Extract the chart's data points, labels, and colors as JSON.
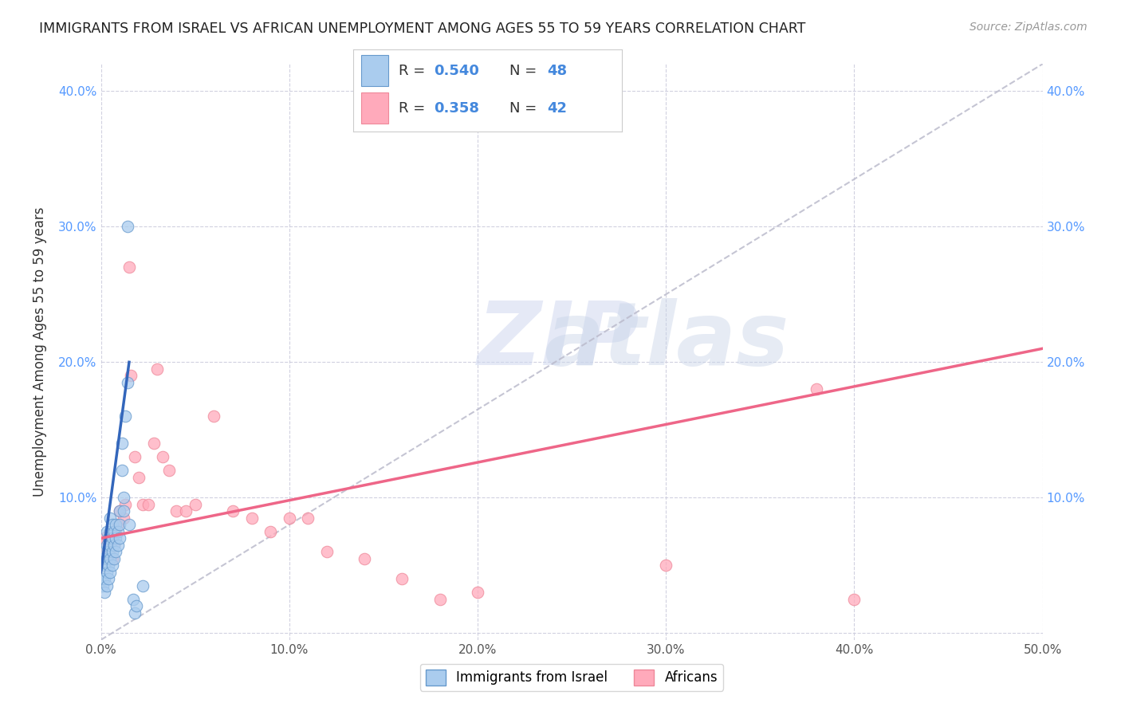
{
  "title": "IMMIGRANTS FROM ISRAEL VS AFRICAN UNEMPLOYMENT AMONG AGES 55 TO 59 YEARS CORRELATION CHART",
  "source": "Source: ZipAtlas.com",
  "ylabel": "Unemployment Among Ages 55 to 59 years",
  "xlim": [
    0.0,
    0.5
  ],
  "ylim": [
    -0.005,
    0.42
  ],
  "legend_label1": "Immigrants from Israel",
  "legend_label2": "Africans",
  "R1": 0.54,
  "N1": 48,
  "R2": 0.358,
  "N2": 42,
  "color_blue_fill": "#AACCEE",
  "color_blue_edge": "#6699CC",
  "color_pink_fill": "#FFAABB",
  "color_pink_edge": "#EE8899",
  "color_blue_line": "#3366BB",
  "color_pink_line": "#EE6688",
  "color_dash_line": "#BBBBCC",
  "blue_scatter_x": [
    0.001,
    0.001,
    0.001,
    0.002,
    0.002,
    0.002,
    0.002,
    0.003,
    0.003,
    0.003,
    0.003,
    0.003,
    0.004,
    0.004,
    0.004,
    0.004,
    0.005,
    0.005,
    0.005,
    0.005,
    0.005,
    0.006,
    0.006,
    0.006,
    0.006,
    0.007,
    0.007,
    0.007,
    0.008,
    0.008,
    0.008,
    0.009,
    0.009,
    0.01,
    0.01,
    0.01,
    0.011,
    0.011,
    0.012,
    0.012,
    0.013,
    0.014,
    0.015,
    0.017,
    0.018,
    0.019,
    0.014,
    0.022
  ],
  "blue_scatter_y": [
    0.035,
    0.04,
    0.055,
    0.03,
    0.04,
    0.05,
    0.06,
    0.035,
    0.045,
    0.055,
    0.065,
    0.075,
    0.04,
    0.05,
    0.06,
    0.07,
    0.045,
    0.055,
    0.065,
    0.075,
    0.085,
    0.05,
    0.06,
    0.07,
    0.08,
    0.055,
    0.065,
    0.075,
    0.06,
    0.07,
    0.08,
    0.065,
    0.075,
    0.07,
    0.08,
    0.09,
    0.12,
    0.14,
    0.09,
    0.1,
    0.16,
    0.185,
    0.08,
    0.025,
    0.015,
    0.02,
    0.3,
    0.035
  ],
  "pink_scatter_x": [
    0.001,
    0.002,
    0.003,
    0.003,
    0.004,
    0.004,
    0.005,
    0.005,
    0.006,
    0.007,
    0.008,
    0.009,
    0.01,
    0.012,
    0.013,
    0.015,
    0.016,
    0.018,
    0.02,
    0.022,
    0.025,
    0.028,
    0.03,
    0.033,
    0.036,
    0.04,
    0.045,
    0.05,
    0.06,
    0.07,
    0.08,
    0.09,
    0.1,
    0.11,
    0.12,
    0.14,
    0.16,
    0.18,
    0.2,
    0.3,
    0.38,
    0.4
  ],
  "pink_scatter_y": [
    0.065,
    0.07,
    0.055,
    0.06,
    0.06,
    0.07,
    0.06,
    0.07,
    0.055,
    0.065,
    0.075,
    0.08,
    0.09,
    0.085,
    0.095,
    0.27,
    0.19,
    0.13,
    0.115,
    0.095,
    0.095,
    0.14,
    0.195,
    0.13,
    0.12,
    0.09,
    0.09,
    0.095,
    0.16,
    0.09,
    0.085,
    0.075,
    0.085,
    0.085,
    0.06,
    0.055,
    0.04,
    0.025,
    0.03,
    0.05,
    0.18,
    0.025
  ],
  "blue_line_x0": 0.0,
  "blue_line_y0": 0.045,
  "blue_line_x1": 0.015,
  "blue_line_y1": 0.2,
  "pink_line_x0": 0.0,
  "pink_line_y0": 0.07,
  "pink_line_x1": 0.5,
  "pink_line_y1": 0.21,
  "dash_line_x0": 0.0,
  "dash_line_y0": -0.005,
  "dash_line_x1": 0.5,
  "dash_line_y1": 0.42
}
